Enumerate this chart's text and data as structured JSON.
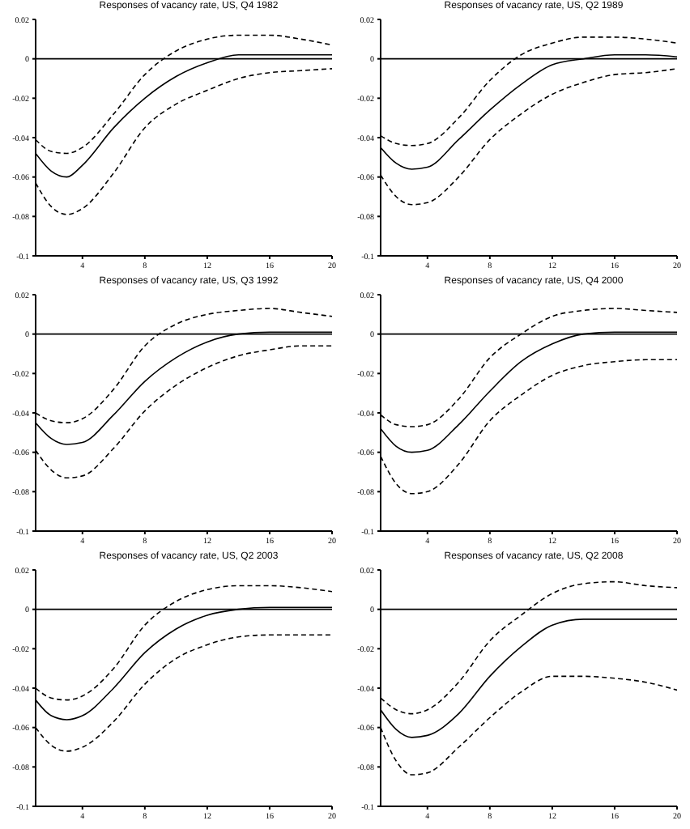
{
  "chart_data": [
    {
      "type": "line",
      "title": "Responses of vacancy rate, US, Q4 1982",
      "x": [
        1,
        2,
        3,
        4,
        6,
        8,
        10,
        12,
        14,
        16,
        18,
        20
      ],
      "xlim": [
        1,
        20
      ],
      "xticks": [
        4,
        8,
        12,
        16,
        20
      ],
      "ylim": [
        -0.1,
        0.02
      ],
      "yticks": [
        -0.1,
        -0.08,
        -0.06,
        -0.04,
        -0.02,
        0,
        0.02
      ],
      "ref_lines": [
        {
          "axis": "y",
          "value": 0,
          "color": "#000000"
        }
      ],
      "series": [
        {
          "color": "#000000",
          "line_style": "solid",
          "values": [
            -0.048,
            -0.057,
            -0.06,
            -0.054,
            -0.035,
            -0.02,
            -0.009,
            -0.002,
            0.002,
            0.002,
            0.002,
            0.002
          ]
        },
        {
          "color": "#000000",
          "line_style": "dashed",
          "values": [
            -0.041,
            -0.047,
            -0.048,
            -0.045,
            -0.028,
            -0.008,
            0.004,
            0.01,
            0.012,
            0.012,
            0.01,
            0.007
          ]
        },
        {
          "color": "#000000",
          "line_style": "dashed",
          "values": [
            -0.063,
            -0.075,
            -0.079,
            -0.076,
            -0.058,
            -0.035,
            -0.023,
            -0.016,
            -0.01,
            -0.007,
            -0.006,
            -0.005
          ]
        }
      ]
    },
    {
      "type": "line",
      "title": "Responses of vacancy rate, US, Q2 1989",
      "x": [
        1,
        2,
        3,
        4,
        6,
        8,
        10,
        12,
        14,
        16,
        18,
        20
      ],
      "xlim": [
        1,
        20
      ],
      "xticks": [
        4,
        8,
        12,
        16,
        20
      ],
      "ylim": [
        -0.1,
        0.02
      ],
      "yticks": [
        -0.1,
        -0.08,
        -0.06,
        -0.04,
        -0.02,
        0,
        0.02
      ],
      "ref_lines": [
        {
          "axis": "y",
          "value": 0,
          "color": "#000000"
        }
      ],
      "series": [
        {
          "color": "#000000",
          "line_style": "solid",
          "values": [
            -0.045,
            -0.053,
            -0.056,
            -0.055,
            -0.041,
            -0.026,
            -0.013,
            -0.003,
            0,
            0.002,
            0.002,
            0.001
          ]
        },
        {
          "color": "#000000",
          "line_style": "dashed",
          "values": [
            -0.039,
            -0.043,
            -0.044,
            -0.043,
            -0.03,
            -0.011,
            0.002,
            0.008,
            0.011,
            0.011,
            0.01,
            0.008
          ]
        },
        {
          "color": "#000000",
          "line_style": "dashed",
          "values": [
            -0.059,
            -0.07,
            -0.074,
            -0.073,
            -0.06,
            -0.041,
            -0.028,
            -0.018,
            -0.012,
            -0.008,
            -0.007,
            -0.005
          ]
        }
      ]
    },
    {
      "type": "line",
      "title": "Responses of vacancy rate, US, Q3 1992",
      "x": [
        1,
        2,
        3,
        4,
        6,
        8,
        10,
        12,
        14,
        16,
        18,
        20
      ],
      "xlim": [
        1,
        20
      ],
      "xticks": [
        4,
        8,
        12,
        16,
        20
      ],
      "ylim": [
        -0.1,
        0.02
      ],
      "yticks": [
        -0.1,
        -0.08,
        -0.06,
        -0.04,
        -0.02,
        0,
        0.02
      ],
      "ref_lines": [
        {
          "axis": "y",
          "value": 0,
          "color": "#000000"
        }
      ],
      "series": [
        {
          "color": "#000000",
          "line_style": "solid",
          "values": [
            -0.045,
            -0.053,
            -0.056,
            -0.055,
            -0.041,
            -0.024,
            -0.012,
            -0.004,
            0,
            0.001,
            0.001,
            0.001
          ]
        },
        {
          "color": "#000000",
          "line_style": "dashed",
          "values": [
            -0.04,
            -0.044,
            -0.045,
            -0.043,
            -0.028,
            -0.006,
            0.005,
            0.01,
            0.012,
            0.013,
            0.011,
            0.009
          ]
        },
        {
          "color": "#000000",
          "line_style": "dashed",
          "values": [
            -0.059,
            -0.069,
            -0.073,
            -0.072,
            -0.058,
            -0.039,
            -0.026,
            -0.017,
            -0.011,
            -0.008,
            -0.006,
            -0.006
          ]
        }
      ]
    },
    {
      "type": "line",
      "title": "Responses of vacancy rate, US, Q4 2000",
      "x": [
        1,
        2,
        3,
        4,
        6,
        8,
        10,
        12,
        14,
        16,
        18,
        20
      ],
      "xlim": [
        1,
        20
      ],
      "xticks": [
        4,
        8,
        12,
        16,
        20
      ],
      "ylim": [
        -0.1,
        0.02
      ],
      "yticks": [
        -0.1,
        -0.08,
        -0.06,
        -0.04,
        -0.02,
        0,
        0.02
      ],
      "ref_lines": [
        {
          "axis": "y",
          "value": 0,
          "color": "#000000"
        }
      ],
      "series": [
        {
          "color": "#000000",
          "line_style": "solid",
          "values": [
            -0.048,
            -0.057,
            -0.06,
            -0.059,
            -0.046,
            -0.029,
            -0.014,
            -0.005,
            0,
            0.001,
            0.001,
            0.001
          ]
        },
        {
          "color": "#000000",
          "line_style": "dashed",
          "values": [
            -0.041,
            -0.046,
            -0.047,
            -0.046,
            -0.033,
            -0.012,
            0,
            0.009,
            0.012,
            0.013,
            0.012,
            0.011
          ]
        },
        {
          "color": "#000000",
          "line_style": "dashed",
          "values": [
            -0.062,
            -0.076,
            -0.081,
            -0.08,
            -0.066,
            -0.044,
            -0.031,
            -0.021,
            -0.016,
            -0.014,
            -0.013,
            -0.013
          ]
        }
      ]
    },
    {
      "type": "line",
      "title": "Responses of vacancy rate, US, Q2 2003",
      "x": [
        1,
        2,
        3,
        4,
        6,
        8,
        10,
        12,
        14,
        16,
        18,
        20
      ],
      "xlim": [
        1,
        20
      ],
      "xticks": [
        4,
        8,
        12,
        16,
        20
      ],
      "ylim": [
        -0.1,
        0.02
      ],
      "yticks": [
        -0.1,
        -0.08,
        -0.06,
        -0.04,
        -0.02,
        0,
        0.02
      ],
      "ref_lines": [
        {
          "axis": "y",
          "value": 0,
          "color": "#000000"
        }
      ],
      "series": [
        {
          "color": "#000000",
          "line_style": "solid",
          "values": [
            -0.046,
            -0.054,
            -0.056,
            -0.054,
            -0.04,
            -0.022,
            -0.01,
            -0.003,
            0,
            0.001,
            0.001,
            0.001
          ]
        },
        {
          "color": "#000000",
          "line_style": "dashed",
          "values": [
            -0.04,
            -0.045,
            -0.046,
            -0.044,
            -0.03,
            -0.008,
            0.004,
            0.01,
            0.012,
            0.012,
            0.011,
            0.009
          ]
        },
        {
          "color": "#000000",
          "line_style": "dashed",
          "values": [
            -0.06,
            -0.069,
            -0.072,
            -0.07,
            -0.057,
            -0.038,
            -0.025,
            -0.018,
            -0.014,
            -0.013,
            -0.013,
            -0.013
          ]
        }
      ]
    },
    {
      "type": "line",
      "title": "Responses of vacancy rate, US, Q2 2008",
      "x": [
        1,
        2,
        3,
        4,
        6,
        8,
        10,
        12,
        14,
        16,
        18,
        20
      ],
      "xlim": [
        1,
        20
      ],
      "xticks": [
        4,
        8,
        12,
        16,
        20
      ],
      "ylim": [
        -0.1,
        0.02
      ],
      "yticks": [
        -0.1,
        -0.08,
        -0.06,
        -0.04,
        -0.02,
        0,
        0.02
      ],
      "ref_lines": [
        {
          "axis": "y",
          "value": 0,
          "color": "#000000"
        }
      ],
      "series": [
        {
          "color": "#000000",
          "line_style": "solid",
          "values": [
            -0.051,
            -0.061,
            -0.065,
            -0.064,
            -0.053,
            -0.034,
            -0.019,
            -0.008,
            -0.005,
            -0.005,
            -0.005,
            -0.005
          ]
        },
        {
          "color": "#000000",
          "line_style": "dashed",
          "values": [
            -0.045,
            -0.051,
            -0.053,
            -0.051,
            -0.037,
            -0.016,
            -0.003,
            0.008,
            0.013,
            0.014,
            0.012,
            0.011
          ]
        },
        {
          "color": "#000000",
          "line_style": "dashed",
          "values": [
            -0.06,
            -0.077,
            -0.084,
            -0.083,
            -0.07,
            -0.055,
            -0.042,
            -0.034,
            -0.034,
            -0.035,
            -0.037,
            -0.041
          ]
        }
      ]
    }
  ]
}
